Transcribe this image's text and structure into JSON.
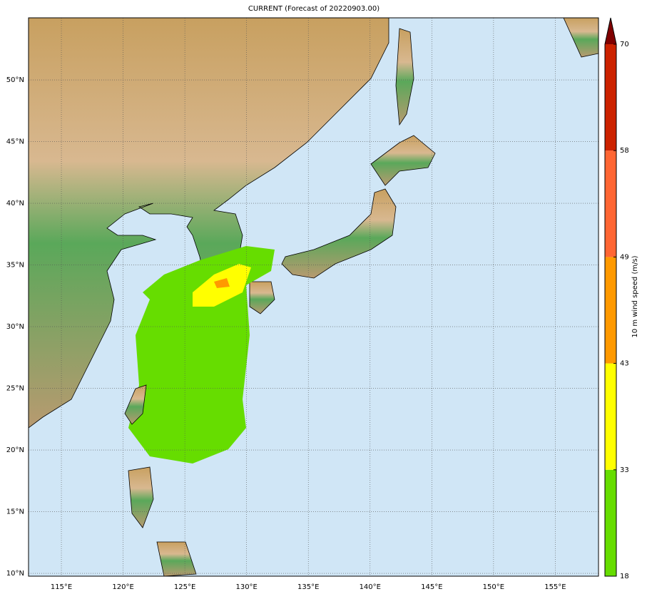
{
  "title": "CURRENT (Forecast of 20220903.00)",
  "map": {
    "lonlim": [
      112.34,
      158.5
    ],
    "latlim": [
      9.77,
      55.03
    ],
    "lon_ticks": [
      {
        "value": 115,
        "label": "115°E"
      },
      {
        "value": 120,
        "label": "120°E"
      },
      {
        "value": 125,
        "label": "125°E"
      },
      {
        "value": 130,
        "label": "130°E"
      },
      {
        "value": 135,
        "label": "135°E"
      },
      {
        "value": 140,
        "label": "140°E"
      },
      {
        "value": 145,
        "label": "145°E"
      },
      {
        "value": 150,
        "label": "150°E"
      },
      {
        "value": 155,
        "label": "155°E"
      }
    ],
    "lat_ticks": [
      {
        "value": 10,
        "label": "10°N"
      },
      {
        "value": 15,
        "label": "15°N"
      },
      {
        "value": 20,
        "label": "20°N"
      },
      {
        "value": 25,
        "label": "25°N"
      },
      {
        "value": 30,
        "label": "30°N"
      },
      {
        "value": 35,
        "label": "35°N"
      },
      {
        "value": 40,
        "label": "40°N"
      },
      {
        "value": 45,
        "label": "45°N"
      },
      {
        "value": 50,
        "label": "50°N"
      }
    ]
  },
  "colorbar": {
    "label": "10 m wind speed (m/s)",
    "levels": [
      18,
      33,
      43,
      49,
      58,
      70
    ],
    "colors": [
      "#66dd00",
      "#ffff00",
      "#ff9900",
      "#ff6633",
      "#cc2200"
    ],
    "extend_color": "#800000"
  }
}
